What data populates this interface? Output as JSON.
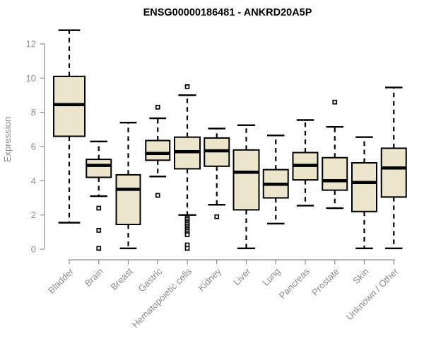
{
  "window": {
    "background": "#FFFFFF"
  },
  "chart_data": {
    "type": "boxplot",
    "title": "ENSG00000186481 - ANKRD20A5P",
    "ylabel": "Expression",
    "xlabel": "",
    "ylim": [
      -0.5,
      13.2
    ],
    "yticks": [
      0,
      2,
      4,
      6,
      8,
      10,
      12
    ],
    "grid": false,
    "legend": "none",
    "axis_color": "#8C8C8C",
    "box_fill": "#EBE6CB",
    "box_stroke": "#000000",
    "median_color": "#000000",
    "outlier_shape": "open-square",
    "categories": [
      "Bladder",
      "Brain",
      "Breast",
      "Gastric",
      "Hematopoietic cells",
      "Kidney",
      "Liver",
      "Lung",
      "Pancreas",
      "Prostate",
      "Skin",
      "Unknown / Other"
    ],
    "series": [
      {
        "name": "Bladder",
        "low": 1.55,
        "q1": 6.6,
        "median": 8.45,
        "q3": 10.1,
        "high": 12.8,
        "outliers": []
      },
      {
        "name": "Brain",
        "low": 3.1,
        "q1": 4.2,
        "median": 4.9,
        "q3": 5.25,
        "high": 6.3,
        "outliers": [
          2.4,
          1.1,
          0.05
        ]
      },
      {
        "name": "Breast",
        "low": 0.05,
        "q1": 1.45,
        "median": 3.5,
        "q3": 4.35,
        "high": 7.4,
        "outliers": []
      },
      {
        "name": "Gastric",
        "low": 4.25,
        "q1": 5.2,
        "median": 5.6,
        "q3": 6.35,
        "high": 7.65,
        "outliers": [
          8.3,
          3.15
        ]
      },
      {
        "name": "Hematopoietic cells",
        "low": 2.0,
        "q1": 4.7,
        "median": 5.7,
        "q3": 6.55,
        "high": 9.0,
        "outliers": [
          9.5,
          1.85,
          1.75,
          1.65,
          1.55,
          1.45,
          1.35,
          1.25,
          1.15,
          1.05,
          0.95,
          0.85,
          0.25,
          0.05
        ]
      },
      {
        "name": "Kidney",
        "low": 2.6,
        "q1": 4.85,
        "median": 5.75,
        "q3": 6.5,
        "high": 7.05,
        "outliers": [
          1.9
        ]
      },
      {
        "name": "Liver",
        "low": 0.05,
        "q1": 2.3,
        "median": 4.5,
        "q3": 5.8,
        "high": 7.25,
        "outliers": []
      },
      {
        "name": "Lung",
        "low": 1.5,
        "q1": 3.0,
        "median": 3.8,
        "q3": 4.65,
        "high": 6.65,
        "outliers": []
      },
      {
        "name": "Pancreas",
        "low": 2.55,
        "q1": 4.05,
        "median": 4.9,
        "q3": 5.65,
        "high": 7.55,
        "outliers": []
      },
      {
        "name": "Prostate",
        "low": 2.4,
        "q1": 3.45,
        "median": 4.0,
        "q3": 5.35,
        "high": 7.15,
        "outliers": [
          8.6
        ]
      },
      {
        "name": "Skin",
        "low": 0.05,
        "q1": 2.2,
        "median": 3.9,
        "q3": 5.05,
        "high": 6.55,
        "outliers": []
      },
      {
        "name": "Unknown / Other",
        "low": 0.05,
        "q1": 3.05,
        "median": 4.75,
        "q3": 5.9,
        "high": 9.45,
        "outliers": []
      }
    ]
  }
}
